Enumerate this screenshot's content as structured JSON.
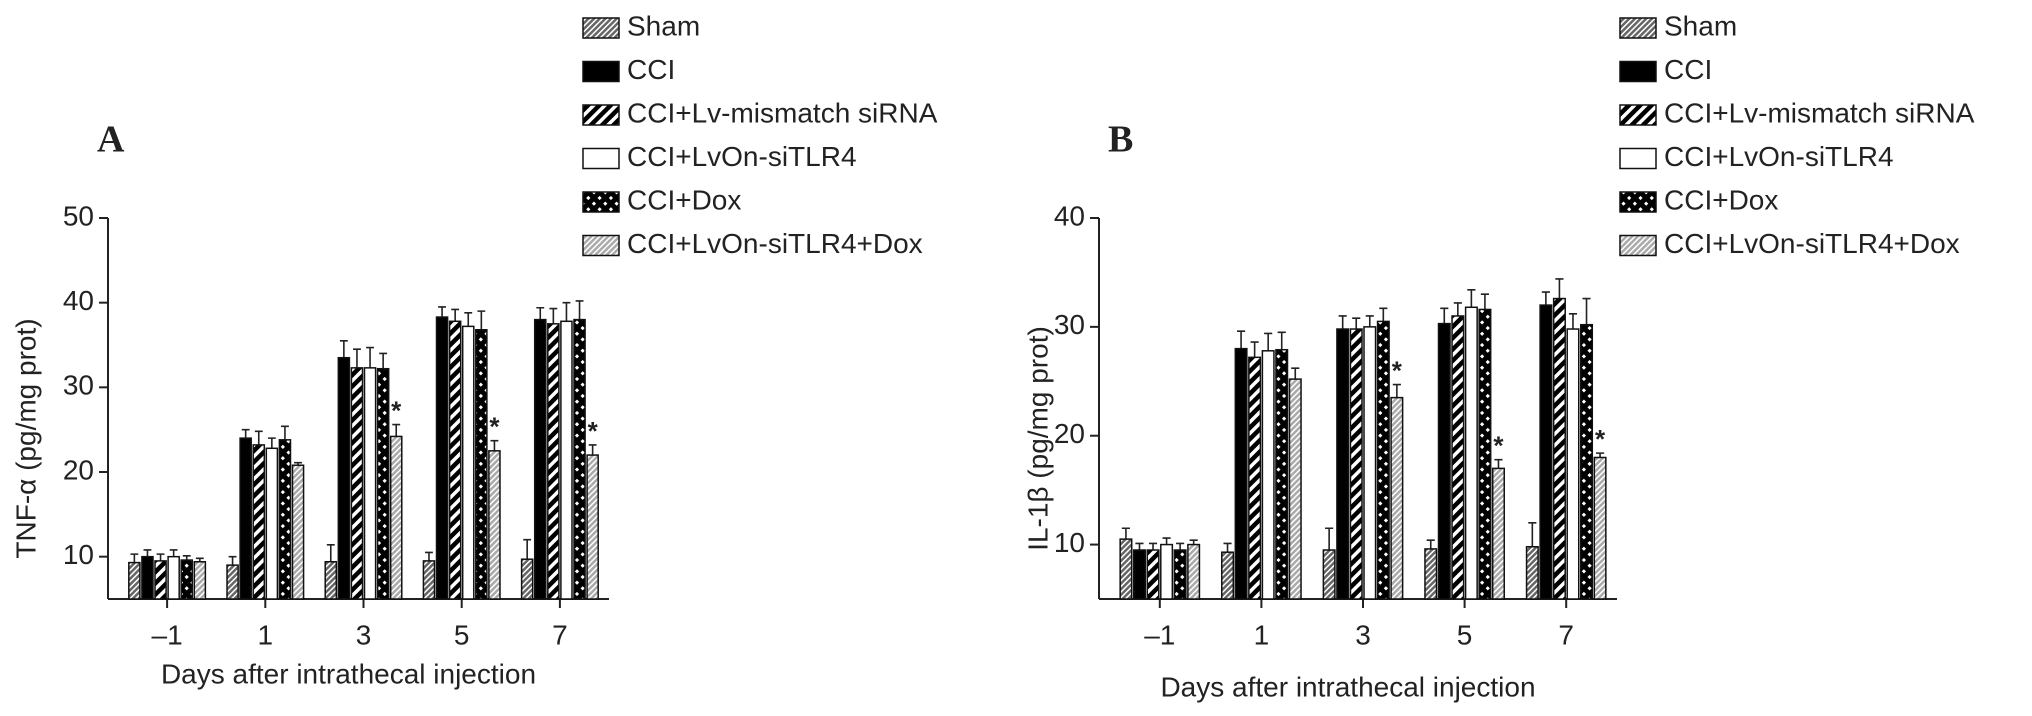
{
  "chart_data": [
    {
      "type": "bar",
      "panel_label": "A",
      "ylabel": "TNF-α (pg/mg prot)",
      "xlabel": "Days after intrathecal injection",
      "categories": [
        "–1",
        "1",
        "3",
        "5",
        "7"
      ],
      "ylim": [
        5,
        50
      ],
      "yticks": [
        10,
        20,
        30,
        40,
        50
      ],
      "series": [
        {
          "name": "Sham",
          "color": "#666666",
          "pattern": "hatch-thin",
          "values": [
            9.3,
            9.0,
            9.4,
            9.5,
            9.7
          ],
          "errors": [
            1.0,
            1.0,
            2.0,
            1.0,
            2.3
          ]
        },
        {
          "name": "CCI",
          "color": "#000000",
          "pattern": "solid",
          "values": [
            10.0,
            24.0,
            33.5,
            38.3,
            38.0
          ],
          "errors": [
            0.8,
            1.0,
            2.0,
            1.2,
            1.4
          ]
        },
        {
          "name": "CCI+Lv-mismatch siRNA",
          "color": "#000000",
          "pattern": "hatch-wide",
          "values": [
            9.5,
            23.2,
            32.3,
            37.8,
            37.5
          ],
          "errors": [
            0.8,
            1.6,
            2.2,
            1.4,
            1.8
          ]
        },
        {
          "name": "CCI+LvOn-siTLR4",
          "color": "#ffffff",
          "pattern": "solid",
          "values": [
            10.0,
            22.8,
            32.3,
            37.2,
            37.8
          ],
          "errors": [
            0.8,
            1.2,
            2.4,
            1.6,
            2.2
          ]
        },
        {
          "name": "CCI+Dox",
          "color": "#000000",
          "pattern": "check",
          "values": [
            9.6,
            23.8,
            32.2,
            36.8,
            38.0
          ],
          "errors": [
            0.5,
            1.6,
            1.8,
            2.2,
            2.2
          ]
        },
        {
          "name": "CCI+LvOn-siTLR4+Dox",
          "color": "#aaaaaa",
          "pattern": "hatch-thin",
          "values": [
            9.4,
            20.8,
            24.2,
            22.5,
            22.0
          ],
          "errors": [
            0.4,
            0.3,
            1.4,
            1.2,
            1.2
          ]
        }
      ],
      "annotations": [
        {
          "text": "*",
          "category": "3",
          "series": "CCI+LvOn-siTLR4+Dox"
        },
        {
          "text": "*",
          "category": "5",
          "series": "CCI+LvOn-siTLR4+Dox"
        },
        {
          "text": "*",
          "category": "7",
          "series": "CCI+LvOn-siTLR4+Dox"
        }
      ]
    },
    {
      "type": "bar",
      "panel_label": "B",
      "ylabel": "IL-1β (pg/mg prot)",
      "xlabel": "Days after intrathecal injection",
      "categories": [
        "–1",
        "1",
        "3",
        "5",
        "7"
      ],
      "ylim": [
        5,
        40
      ],
      "yticks": [
        10,
        20,
        30,
        40
      ],
      "series": [
        {
          "name": "Sham",
          "color": "#666666",
          "pattern": "hatch-thin",
          "values": [
            10.5,
            9.3,
            9.5,
            9.6,
            9.8
          ],
          "errors": [
            1.0,
            0.8,
            2.0,
            0.8,
            2.2
          ]
        },
        {
          "name": "CCI",
          "color": "#000000",
          "pattern": "solid",
          "values": [
            9.5,
            28.0,
            29.8,
            30.3,
            32.0
          ],
          "errors": [
            0.6,
            1.6,
            1.2,
            1.4,
            1.2
          ]
        },
        {
          "name": "CCI+Lv-mismatch siRNA",
          "color": "#000000",
          "pattern": "hatch-wide",
          "values": [
            9.5,
            27.2,
            29.8,
            31.0,
            32.6
          ],
          "errors": [
            0.6,
            1.4,
            1.0,
            1.2,
            1.8
          ]
        },
        {
          "name": "CCI+LvOn-siTLR4",
          "color": "#ffffff",
          "pattern": "solid",
          "values": [
            10.0,
            27.8,
            30.0,
            31.8,
            29.8
          ],
          "errors": [
            0.6,
            1.6,
            1.0,
            1.6,
            1.4
          ]
        },
        {
          "name": "CCI+Dox",
          "color": "#000000",
          "pattern": "check",
          "values": [
            9.5,
            27.9,
            30.5,
            31.6,
            30.2
          ],
          "errors": [
            0.6,
            1.6,
            1.2,
            1.4,
            2.4
          ]
        },
        {
          "name": "CCI+LvOn-siTLR4+Dox",
          "color": "#aaaaaa",
          "pattern": "hatch-thin",
          "values": [
            10.0,
            25.2,
            23.5,
            17.0,
            18.0
          ],
          "errors": [
            0.4,
            1.0,
            1.2,
            0.8,
            0.4
          ]
        }
      ],
      "annotations": [
        {
          "text": "*",
          "category": "3",
          "series": "CCI+LvOn-siTLR4+Dox"
        },
        {
          "text": "*",
          "category": "5",
          "series": "CCI+LvOn-siTLR4+Dox"
        },
        {
          "text": "*",
          "category": "7",
          "series": "CCI+LvOn-siTLR4+Dox"
        }
      ]
    }
  ]
}
